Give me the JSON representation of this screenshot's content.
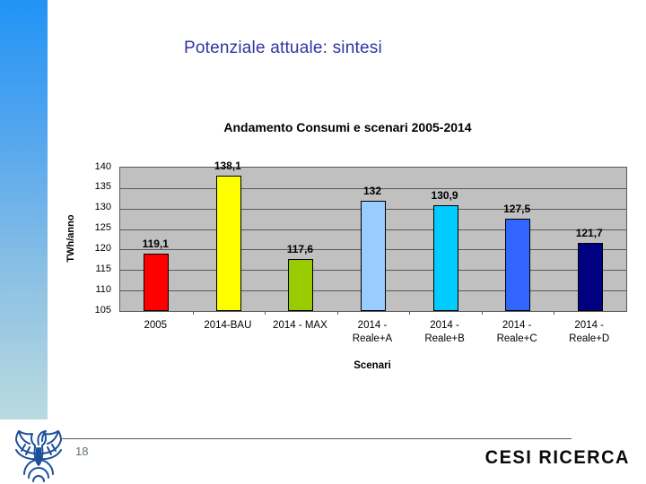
{
  "slide": {
    "title": "Potenziale attuale: sintesi",
    "title_color": "#3333a3",
    "page_number": "18",
    "brand_text": "CESI RICERCA",
    "sidebar_gradient_top": "#2194f6",
    "sidebar_gradient_bottom": "#b9dadf"
  },
  "chart_data": {
    "type": "bar",
    "title": "Andamento Consumi e scenari 2005-2014",
    "xlabel": "Scenari",
    "ylabel": "TWh/anno",
    "ylim": [
      105,
      140
    ],
    "yticks": [
      140,
      135,
      130,
      125,
      120,
      115,
      110,
      105
    ],
    "grid": true,
    "legend": false,
    "plot_bg": "#c0c0c0",
    "categories": [
      "2005",
      "2014-BAU",
      "2014 - MAX",
      "2014 -\nReale+A",
      "2014 -\nReale+B",
      "2014 -\nReale+C",
      "2014 -\nReale+D"
    ],
    "values": [
      119.1,
      138.1,
      117.6,
      132,
      130.9,
      127.5,
      121.7
    ],
    "bars": [
      {
        "category": "2005",
        "value": 119.1,
        "label": "119,1",
        "color": "#ff0000"
      },
      {
        "category": "2014-BAU",
        "value": 138.1,
        "label": "138,1",
        "color": "#ffff00"
      },
      {
        "category": "2014 - MAX",
        "value": 117.6,
        "label": "117,6",
        "color": "#99cc00"
      },
      {
        "category": "2014 -\nReale+A",
        "value": 132,
        "label": "132",
        "color": "#99ccff"
      },
      {
        "category": "2014 -\nReale+B",
        "value": 130.9,
        "label": "130,9",
        "color": "#00ccff"
      },
      {
        "category": "2014 -\nReale+C",
        "value": 127.5,
        "label": "127,5",
        "color": "#3366ff"
      },
      {
        "category": "2014 -\nReale+D",
        "value": 121.7,
        "label": "121,7",
        "color": "#000080"
      }
    ]
  }
}
